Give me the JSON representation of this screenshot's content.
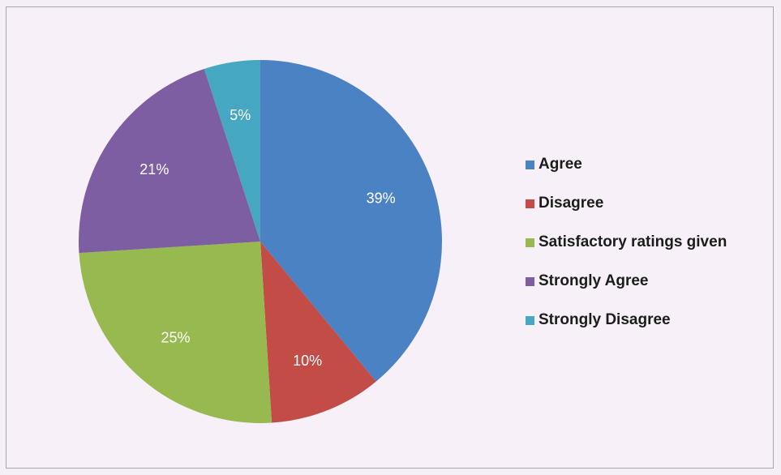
{
  "chart_data": {
    "type": "pie",
    "title": "",
    "slices": [
      {
        "label": "Agree",
        "value": 39,
        "display": "39%",
        "color": "#4b82c4"
      },
      {
        "label": "Disagree",
        "value": 10,
        "display": "10%",
        "color": "#c34c46"
      },
      {
        "label": "Satisfactory ratings given",
        "value": 25,
        "display": "25%",
        "color": "#97b950"
      },
      {
        "label": "Strongly Agree",
        "value": 21,
        "display": "21%",
        "color": "#7e5ea2"
      },
      {
        "label": "Strongly Disagree",
        "value": 5,
        "display": "5%",
        "color": "#45a7c1"
      }
    ],
    "start_angle": "12 o'clock",
    "direction": "clockwise",
    "legend_position": "right"
  }
}
